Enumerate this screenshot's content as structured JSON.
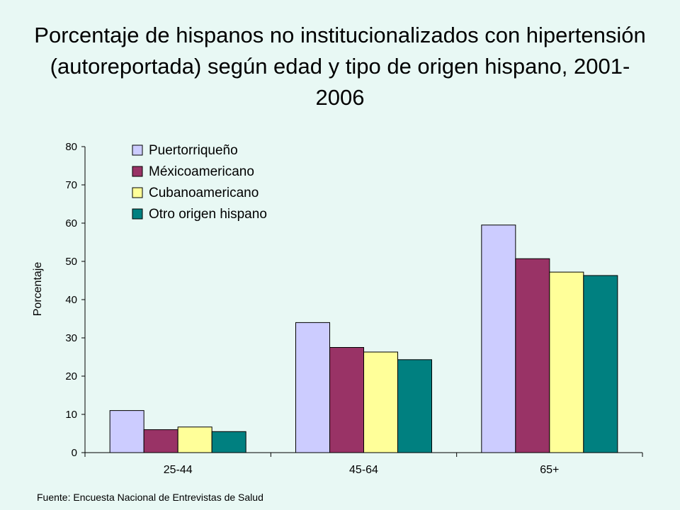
{
  "title": "Porcentaje de hispanos no institucionalizados con hipertensión (autoreportada) según edad y tipo de origen hispano, 2001-2006",
  "source": "Fuente: Encuesta Nacional de Entrevistas de Salud",
  "chart_data": {
    "type": "bar",
    "title": "Porcentaje de hispanos no institucionalizados con hipertensión (autoreportada) según edad y tipo de origen hispano, 2001-2006",
    "xlabel": "",
    "ylabel": "Porcentaje",
    "ylim": [
      0,
      80
    ],
    "yticks": [
      0,
      10,
      20,
      30,
      40,
      50,
      60,
      70,
      80
    ],
    "grid": false,
    "legend_position": "top-left",
    "categories": [
      "25-44",
      "45-64",
      "65+"
    ],
    "series": [
      {
        "name": "Puertorriqueño",
        "color": "#ccccff",
        "values": [
          11,
          34,
          59.5
        ]
      },
      {
        "name": "Méxicoamericano",
        "color": "#993366",
        "values": [
          6,
          27.5,
          50.7
        ]
      },
      {
        "name": "Cubanoamericano",
        "color": "#ffff99",
        "values": [
          6.7,
          26.3,
          47.2
        ]
      },
      {
        "name": "Otro origen hispano",
        "color": "#008080",
        "values": [
          5.5,
          24.3,
          46.3
        ]
      }
    ]
  }
}
